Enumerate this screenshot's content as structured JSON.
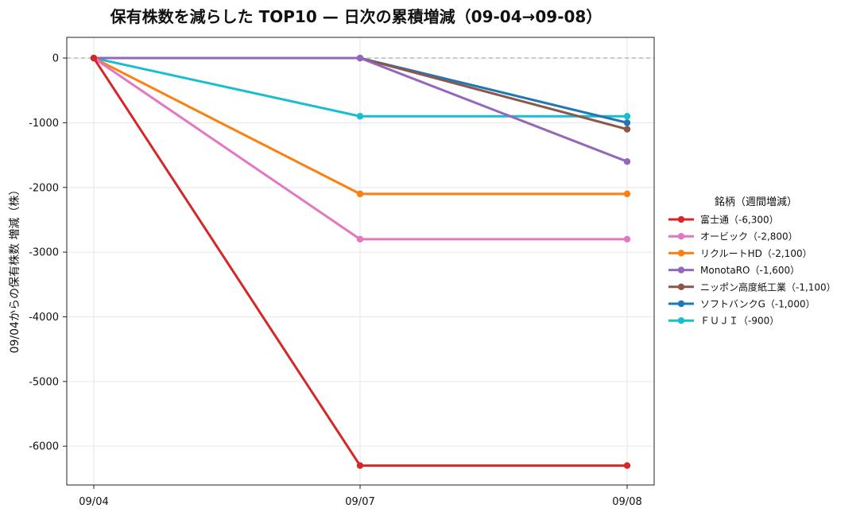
{
  "chart_data": {
    "type": "line",
    "title": "保有株数を減らした TOP10 — 日次の累積増減（09-04→09-08）",
    "xlabel": "",
    "ylabel": "09/04からの保有株数 増減（株）",
    "categories": [
      "09/04",
      "09/07",
      "09/08"
    ],
    "ylim": [
      -6600,
      320
    ],
    "yticks": [
      0,
      -1000,
      -2000,
      -3000,
      -4000,
      -5000,
      -6000
    ],
    "grid": true,
    "zero_line": true,
    "legend": {
      "title": "銘柄（週間増減）",
      "placement": "right"
    },
    "series": [
      {
        "name": "富士通（-6,300）",
        "values": [
          0,
          -6300,
          -6300
        ],
        "color": "#d62728"
      },
      {
        "name": "オービック（-2,800）",
        "values": [
          0,
          -2800,
          -2800
        ],
        "color": "#e377c2"
      },
      {
        "name": "リクルートHD（-2,100）",
        "values": [
          0,
          -2100,
          -2100
        ],
        "color": "#ff7f0e"
      },
      {
        "name": "MonotaRO（-1,600）",
        "values": [
          0,
          0,
          -1600
        ],
        "color": "#9467bd"
      },
      {
        "name": "ニッポン高度紙工業（-1,100）",
        "values": [
          0,
          0,
          -1100
        ],
        "color": "#8c564b"
      },
      {
        "name": "ソフトバンクG（-1,000）",
        "values": [
          0,
          0,
          -1000
        ],
        "color": "#1f77b4"
      },
      {
        "name": "ＦＵＪＩ（-900）",
        "values": [
          0,
          -900,
          -900
        ],
        "color": "#17becf"
      }
    ]
  }
}
